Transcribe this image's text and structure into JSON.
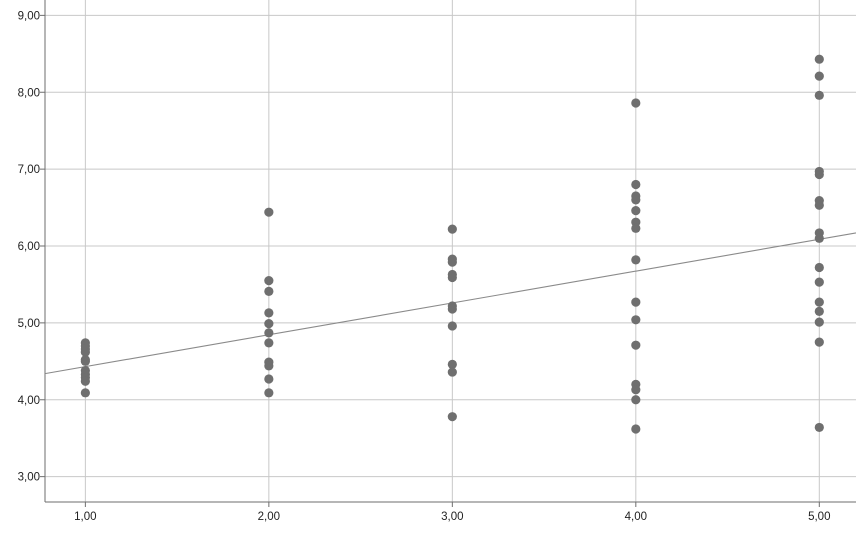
{
  "colors": {
    "background": "#ffffff",
    "gridline": "#c8c8c8",
    "axis": "#6e6e6e",
    "point": "#6f6f6f",
    "fit_line": "#8a8a8a",
    "text": "#222222"
  },
  "chart_data": {
    "type": "scatter",
    "title": "",
    "xlabel": "",
    "ylabel": "",
    "xlim": [
      0.78,
      5.2
    ],
    "ylim": [
      2.67,
      9.2
    ],
    "grid": true,
    "legend": "none",
    "x_ticks": [
      1,
      2,
      3,
      4,
      5
    ],
    "x_tick_labels": [
      "1,00",
      "2,00",
      "3,00",
      "4,00",
      "5,00"
    ],
    "y_ticks": [
      3,
      4,
      5,
      6,
      7,
      8,
      9
    ],
    "y_tick_labels": [
      "3,00",
      "4,00",
      "5,00",
      "6,00",
      "7,00",
      "8,00",
      "9,00"
    ],
    "points": [
      {
        "x": 1,
        "y": 4.74
      },
      {
        "x": 1,
        "y": 4.7
      },
      {
        "x": 1,
        "y": 4.66
      },
      {
        "x": 1,
        "y": 4.62
      },
      {
        "x": 1,
        "y": 4.52
      },
      {
        "x": 1,
        "y": 4.5
      },
      {
        "x": 1,
        "y": 4.38
      },
      {
        "x": 1,
        "y": 4.33
      },
      {
        "x": 1,
        "y": 4.29
      },
      {
        "x": 1,
        "y": 4.24
      },
      {
        "x": 1,
        "y": 4.09
      },
      {
        "x": 2,
        "y": 6.44
      },
      {
        "x": 2,
        "y": 5.55
      },
      {
        "x": 2,
        "y": 5.41
      },
      {
        "x": 2,
        "y": 5.13
      },
      {
        "x": 2,
        "y": 4.99
      },
      {
        "x": 2,
        "y": 4.87
      },
      {
        "x": 2,
        "y": 4.74
      },
      {
        "x": 2,
        "y": 4.49
      },
      {
        "x": 2,
        "y": 4.44
      },
      {
        "x": 2,
        "y": 4.27
      },
      {
        "x": 2,
        "y": 4.09
      },
      {
        "x": 3,
        "y": 6.22
      },
      {
        "x": 3,
        "y": 5.83
      },
      {
        "x": 3,
        "y": 5.79
      },
      {
        "x": 3,
        "y": 5.63
      },
      {
        "x": 3,
        "y": 5.59
      },
      {
        "x": 3,
        "y": 5.22
      },
      {
        "x": 3,
        "y": 5.18
      },
      {
        "x": 3,
        "y": 4.96
      },
      {
        "x": 3,
        "y": 4.46
      },
      {
        "x": 3,
        "y": 4.36
      },
      {
        "x": 3,
        "y": 3.78
      },
      {
        "x": 4,
        "y": 7.86
      },
      {
        "x": 4,
        "y": 6.8
      },
      {
        "x": 4,
        "y": 6.65
      },
      {
        "x": 4,
        "y": 6.6
      },
      {
        "x": 4,
        "y": 6.46
      },
      {
        "x": 4,
        "y": 6.31
      },
      {
        "x": 4,
        "y": 6.23
      },
      {
        "x": 4,
        "y": 5.82
      },
      {
        "x": 4,
        "y": 5.27
      },
      {
        "x": 4,
        "y": 5.04
      },
      {
        "x": 4,
        "y": 4.71
      },
      {
        "x": 4,
        "y": 4.2
      },
      {
        "x": 4,
        "y": 4.13
      },
      {
        "x": 4,
        "y": 4.0
      },
      {
        "x": 4,
        "y": 3.62
      },
      {
        "x": 5,
        "y": 8.43
      },
      {
        "x": 5,
        "y": 8.21
      },
      {
        "x": 5,
        "y": 7.96
      },
      {
        "x": 5,
        "y": 6.97
      },
      {
        "x": 5,
        "y": 6.93
      },
      {
        "x": 5,
        "y": 6.59
      },
      {
        "x": 5,
        "y": 6.53
      },
      {
        "x": 5,
        "y": 6.17
      },
      {
        "x": 5,
        "y": 6.1
      },
      {
        "x": 5,
        "y": 5.72
      },
      {
        "x": 5,
        "y": 5.53
      },
      {
        "x": 5,
        "y": 5.27
      },
      {
        "x": 5,
        "y": 5.15
      },
      {
        "x": 5,
        "y": 5.01
      },
      {
        "x": 5,
        "y": 4.75
      },
      {
        "x": 5,
        "y": 3.64
      }
    ],
    "fit_line": {
      "x": [
        0.78,
        5.2
      ],
      "y": [
        4.34,
        6.17
      ]
    }
  }
}
